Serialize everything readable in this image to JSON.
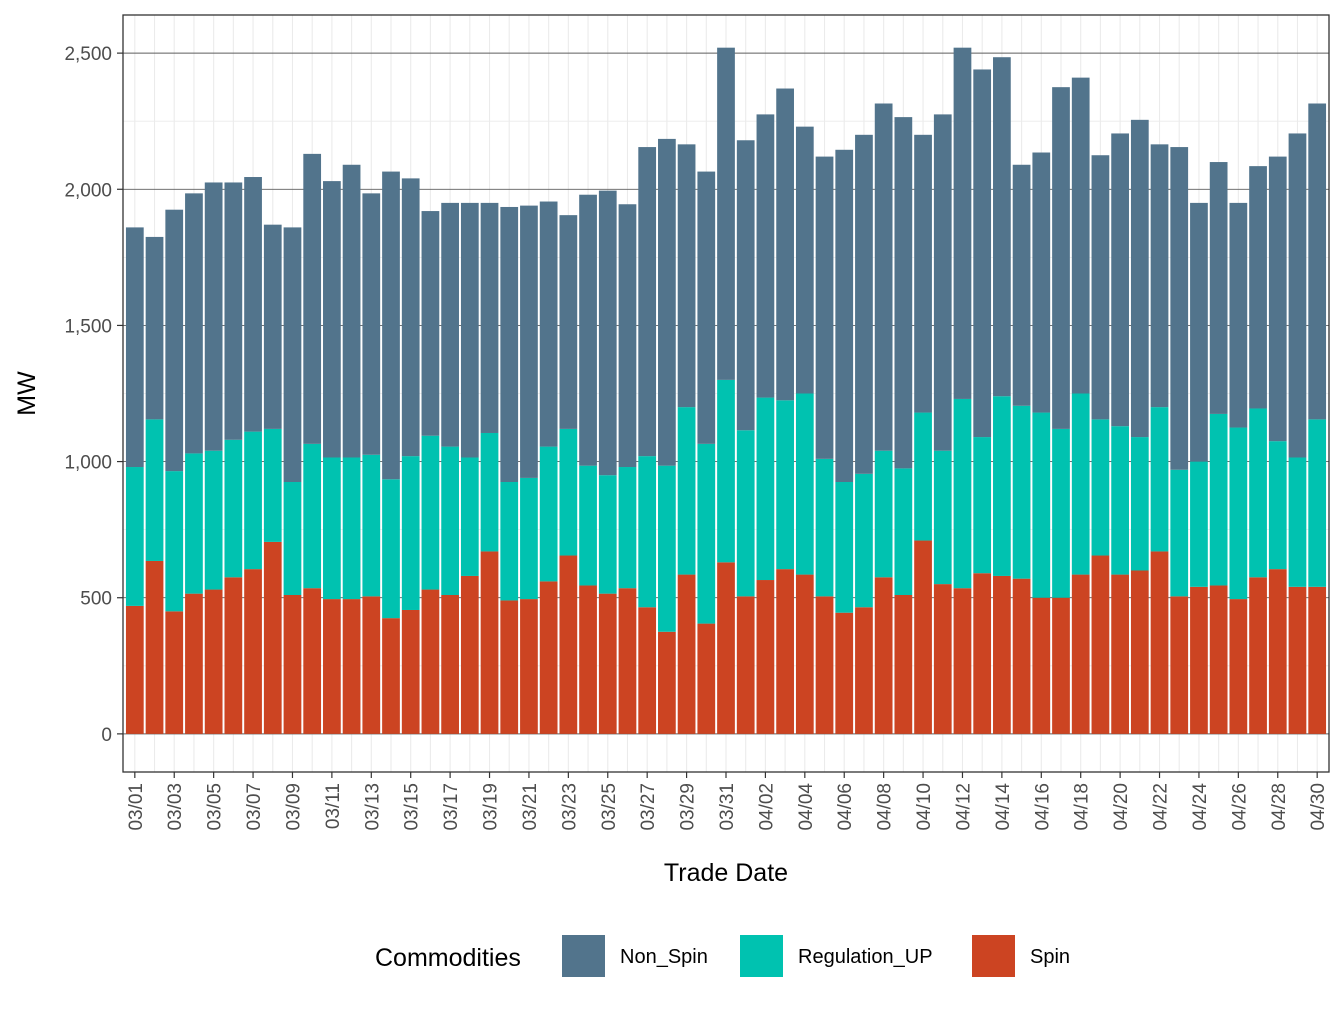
{
  "chart_data": {
    "type": "bar",
    "stacked": true,
    "xlabel": "Trade Date",
    "ylabel": "MW",
    "ylim": [
      -140,
      2640
    ],
    "yticks": [
      0,
      500,
      1000,
      1500,
      2000,
      2500
    ],
    "ytick_labels": [
      "0",
      "500",
      "1,000",
      "1,500",
      "2,000",
      "2,500"
    ],
    "grid": true,
    "legend": {
      "title": "Commodities",
      "position": "bottom"
    },
    "categories": [
      "03/01",
      "03/02",
      "03/03",
      "03/04",
      "03/05",
      "03/06",
      "03/07",
      "03/08",
      "03/09",
      "03/10",
      "03/11",
      "03/12",
      "03/13",
      "03/14",
      "03/15",
      "03/16",
      "03/17",
      "03/18",
      "03/19",
      "03/20",
      "03/21",
      "03/22",
      "03/23",
      "03/24",
      "03/25",
      "03/26",
      "03/27",
      "03/28",
      "03/29",
      "03/30",
      "03/31",
      "04/01",
      "04/02",
      "04/03",
      "04/04",
      "04/05",
      "04/06",
      "04/07",
      "04/08",
      "04/09",
      "04/10",
      "04/11",
      "04/12",
      "04/13",
      "04/14",
      "04/15",
      "04/16",
      "04/17",
      "04/18",
      "04/19",
      "04/20",
      "04/21",
      "04/22",
      "04/23",
      "04/24",
      "04/25",
      "04/26",
      "04/27",
      "04/28",
      "04/29",
      "04/30"
    ],
    "xtick_labels": [
      "03/01",
      "03/03",
      "03/05",
      "03/07",
      "03/09",
      "03/11",
      "03/13",
      "03/15",
      "03/17",
      "03/19",
      "03/21",
      "03/23",
      "03/25",
      "03/27",
      "03/29",
      "03/31",
      "04/02",
      "04/04",
      "04/06",
      "04/08",
      "04/10",
      "04/12",
      "04/14",
      "04/16",
      "04/18",
      "04/20",
      "04/22",
      "04/24",
      "04/26",
      "04/28",
      "04/30"
    ],
    "series": [
      {
        "name": "Spin",
        "color": "#cc4422",
        "values": [
          470,
          635,
          450,
          515,
          530,
          575,
          605,
          705,
          510,
          535,
          495,
          495,
          505,
          425,
          455,
          530,
          510,
          580,
          670,
          490,
          495,
          560,
          655,
          545,
          515,
          535,
          465,
          375,
          585,
          405,
          630,
          505,
          565,
          605,
          585,
          505,
          445,
          465,
          575,
          510,
          710,
          550,
          535,
          590,
          580,
          570,
          500,
          500,
          585,
          655,
          585,
          600,
          670,
          505,
          540,
          545,
          495,
          575,
          605,
          540,
          540
        ]
      },
      {
        "name": "Regulation_UP",
        "color": "#00c2b0",
        "values": [
          510,
          520,
          515,
          515,
          510,
          505,
          505,
          415,
          415,
          530,
          520,
          520,
          520,
          510,
          565,
          565,
          545,
          435,
          435,
          435,
          445,
          495,
          465,
          440,
          435,
          445,
          555,
          610,
          615,
          660,
          670,
          610,
          670,
          620,
          665,
          505,
          480,
          490,
          465,
          465,
          470,
          490,
          695,
          500,
          660,
          635,
          680,
          620,
          665,
          500,
          545,
          490,
          530,
          465,
          460,
          630,
          630,
          620,
          470,
          475,
          615
        ]
      },
      {
        "name": "Non_Spin",
        "color": "#52748c",
        "values": [
          880,
          670,
          960,
          955,
          985,
          945,
          935,
          750,
          935,
          1065,
          1015,
          1075,
          960,
          1130,
          1020,
          825,
          895,
          935,
          845,
          1010,
          1000,
          900,
          785,
          995,
          1045,
          965,
          1135,
          1200,
          965,
          1000,
          1220,
          1065,
          1040,
          1145,
          980,
          1110,
          1220,
          1245,
          1275,
          1290,
          1020,
          1235,
          1290,
          1350,
          1245,
          885,
          955,
          1255,
          1160,
          970,
          1075,
          1165,
          965,
          1185,
          950,
          925,
          825,
          890,
          1045,
          1190,
          1160
        ]
      }
    ]
  }
}
